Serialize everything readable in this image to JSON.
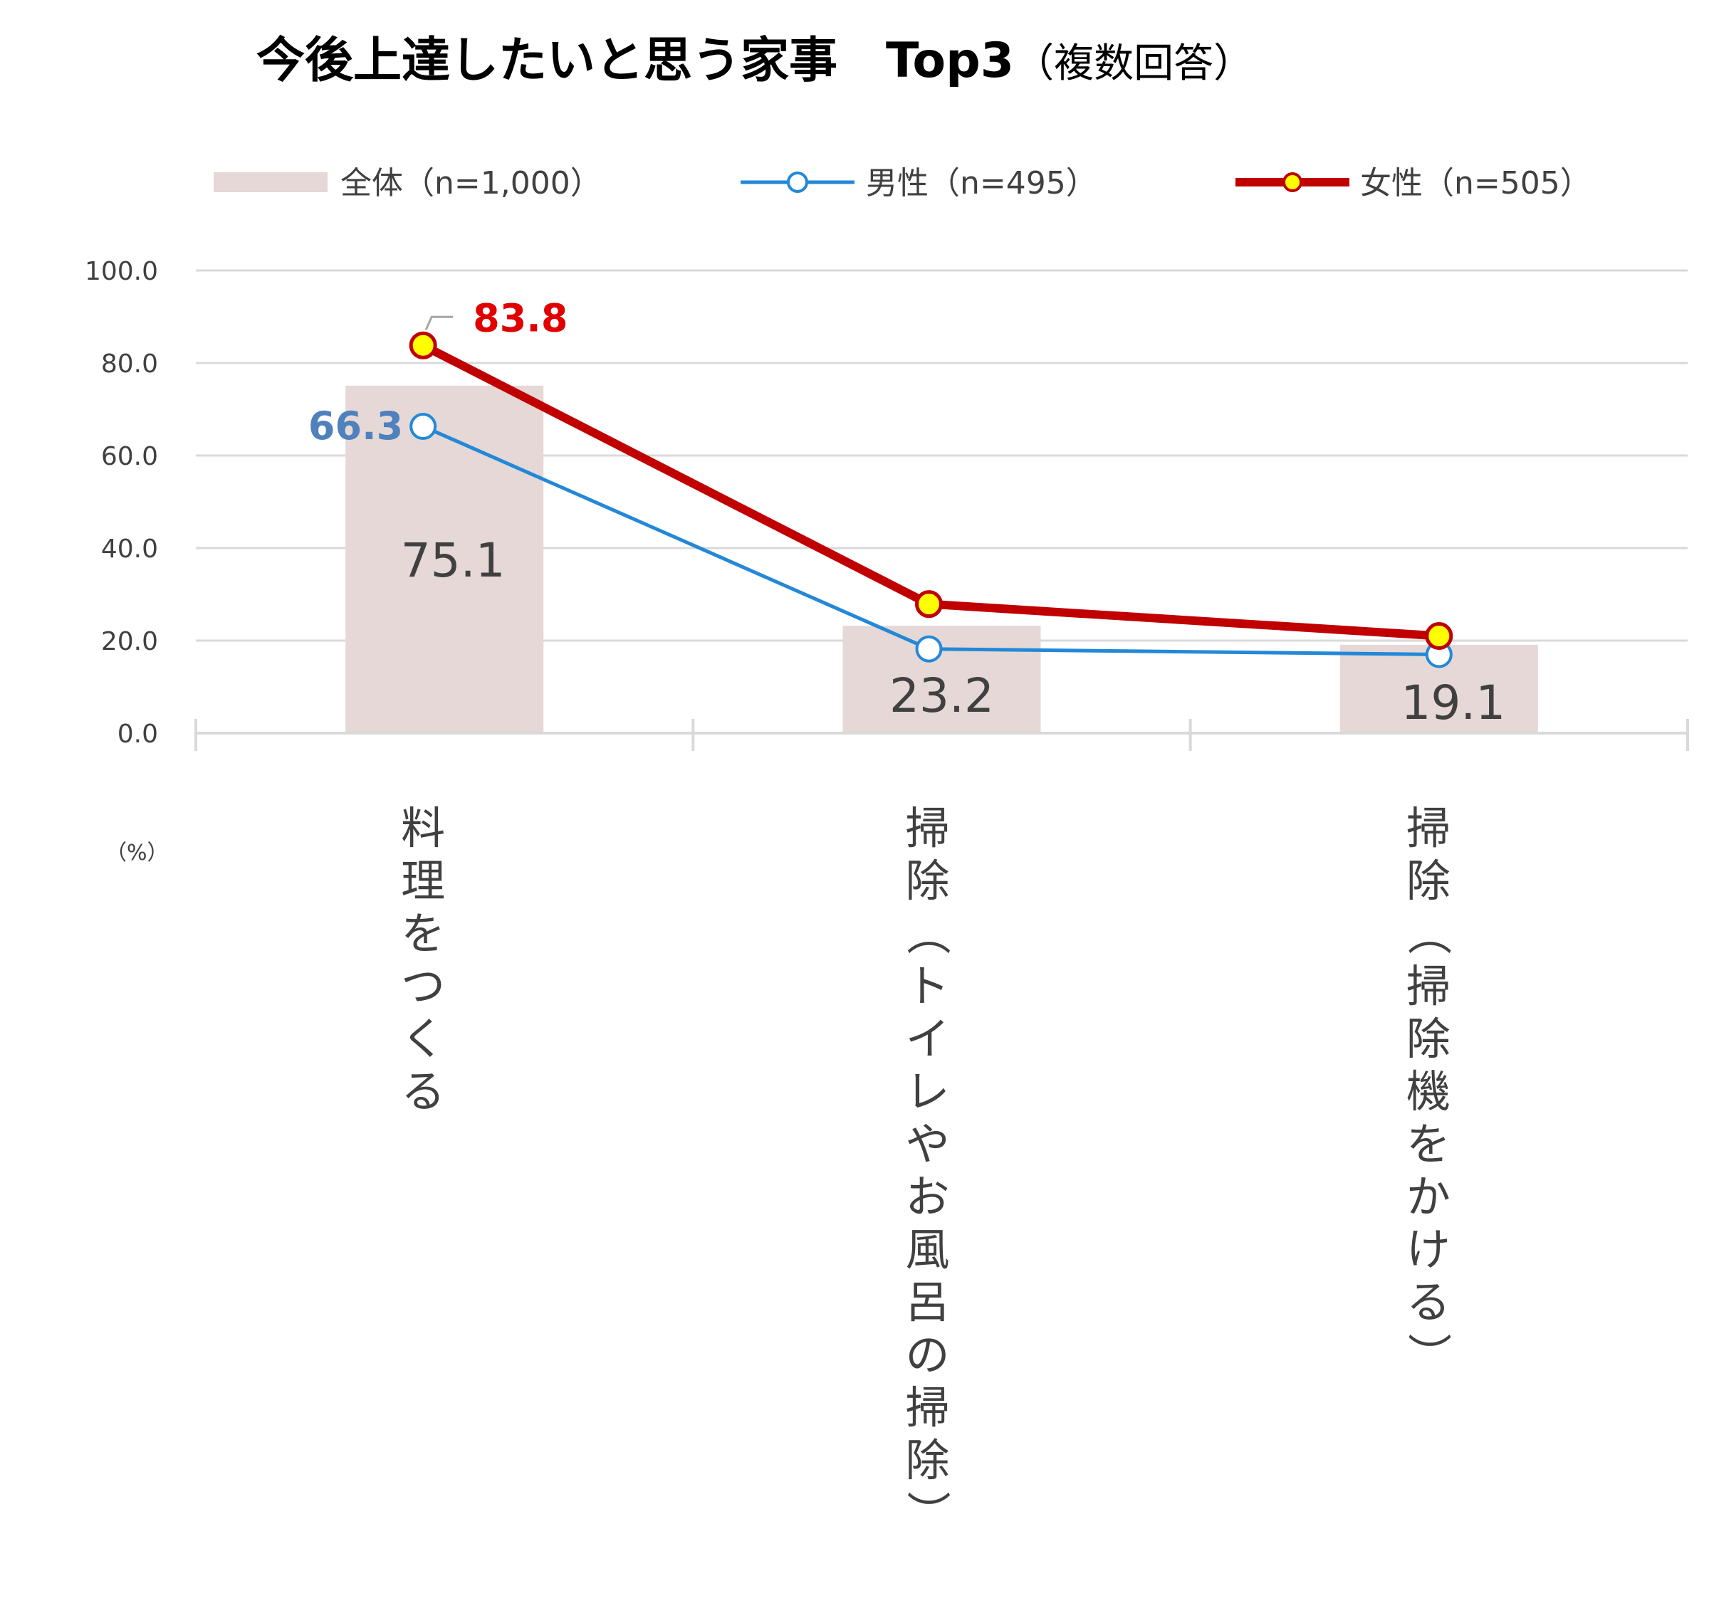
{
  "chart_data": {
    "type": "bar",
    "title": "今後上達したいと思う家事　Top3",
    "subtitle": "（複数回答）",
    "unit_label": "（%）",
    "categories": [
      "料理をつくる",
      "掃除（トイレやお風呂の掃除）",
      "掃除（掃除機をかける）"
    ],
    "ylim": [
      0,
      100
    ],
    "yticks": [
      "0.0",
      "20.0",
      "40.0",
      "60.0",
      "80.0",
      "100.0"
    ],
    "grid": true,
    "legend_position": "top",
    "series": [
      {
        "name": "全体（n=1,000）",
        "kind": "bar",
        "color": "#e5d8d6",
        "values": [
          75.1,
          23.2,
          19.1
        ],
        "labels": [
          "75.1",
          "23.2",
          "19.1"
        ]
      },
      {
        "name": "男性（n=495）",
        "kind": "line",
        "color": "#2388d8",
        "values": [
          66.3,
          18.2,
          17.0
        ],
        "labels": [
          "66.3",
          "",
          ""
        ],
        "label_color": "#4f81bd"
      },
      {
        "name": "女性（n=505）",
        "kind": "line",
        "color": "#c00000",
        "marker_fill": "#ffff00",
        "values": [
          83.8,
          27.9,
          21.0
        ],
        "labels": [
          "83.8",
          "",
          ""
        ],
        "label_color": "#e00000"
      }
    ]
  }
}
